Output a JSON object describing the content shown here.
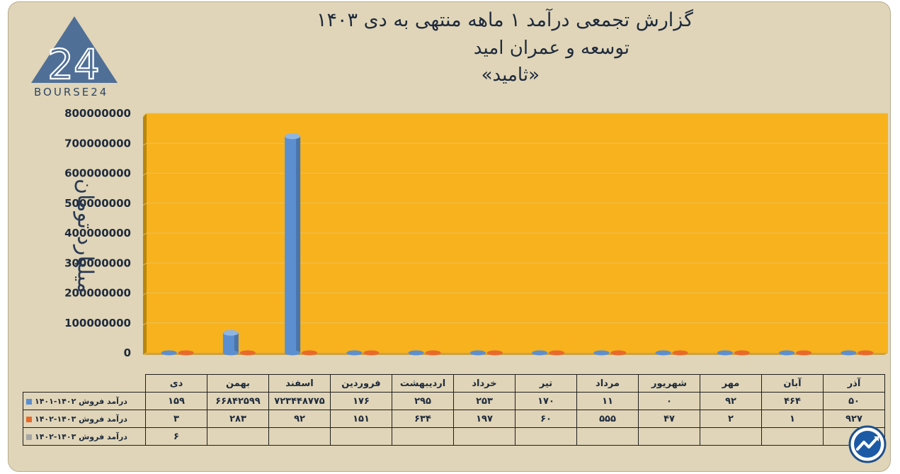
{
  "header": {
    "title_line1": "گزارش تجمعی درآمد ۱ ماهه منتهی به دی ۱۴۰۳",
    "title_line2": "توسعه و عمران امید",
    "title_line3": "«ثامید»",
    "logo_text": "BOURSE24",
    "logo_icon": "bourse24-logo"
  },
  "badge_icon": "trend-arrow-logo",
  "colors": {
    "background": "#e0d5b8",
    "plot_area": "#f7b21e",
    "series1": "#5b8fd0",
    "series2": "#e86a2b",
    "series3": "#a6a6a6"
  },
  "chart_data": {
    "type": "bar",
    "ylabel": "میلیارد تومان",
    "ylim": [
      0,
      800000000
    ],
    "y_ticks": [
      "0",
      "100000000",
      "200000000",
      "300000000",
      "400000000",
      "500000000",
      "600000000",
      "700000000",
      "800000000"
    ],
    "categories": [
      "دی",
      "بهمن",
      "اسفند",
      "فروردین",
      "اردیبهشت",
      "خرداد",
      "تیر",
      "مرداد",
      "شهریور",
      "مهر",
      "آبان",
      "آذر"
    ],
    "series": [
      {
        "name": "درآمد فروش ۱۴۰۲-۱۴۰۱",
        "values": [
          159,
          66842599,
          723448775,
          176,
          295,
          253,
          170,
          11,
          0,
          92,
          464,
          50
        ],
        "labels": [
          "۱۵۹",
          "۶۶۸۴۲۵۹۹",
          "۷۲۳۴۴۸۷۷۵",
          "۱۷۶",
          "۲۹۵",
          "۲۵۳",
          "۱۷۰",
          "۱۱",
          "۰",
          "۹۲",
          "۴۶۴",
          "۵۰"
        ]
      },
      {
        "name": "درآمد فروش ۱۴۰۳-۱۴۰۲",
        "values": [
          3,
          283,
          92,
          151,
          634,
          197,
          60,
          555,
          47,
          2,
          1,
          927
        ],
        "labels": [
          "۳",
          "۲۸۳",
          "۹۲",
          "۱۵۱",
          "۶۳۴",
          "۱۹۷",
          "۶۰",
          "۵۵۵",
          "۴۷",
          "۲",
          "۱",
          "۹۲۷"
        ]
      },
      {
        "name": "درآمد فروش ۱۴۰۳-۱۴۰۲",
        "values": [
          6,
          null,
          null,
          null,
          null,
          null,
          null,
          null,
          null,
          null,
          null,
          null
        ],
        "labels": [
          "۶",
          "",
          "",
          "",
          "",
          "",
          "",
          "",
          "",
          "",
          "",
          ""
        ]
      }
    ]
  }
}
